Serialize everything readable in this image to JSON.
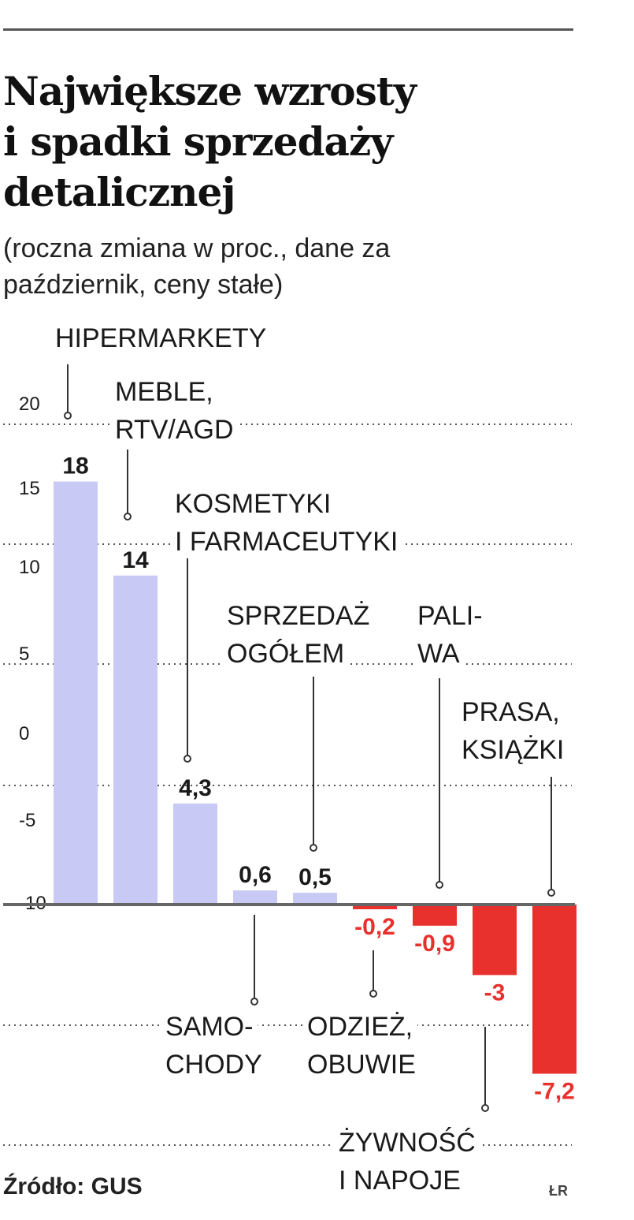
{
  "title_lines": [
    "Największe wzrosty",
    "i spadki sprzedaży",
    "detalicznej"
  ],
  "subtitle_lines": [
    "(roczna zmiana w proc., dane za",
    "październik, ceny stałe)"
  ],
  "source": "Źródło: GUS",
  "credit": "ŁR",
  "colors": {
    "positive": "#c9c9f5",
    "negative": "#e8302c",
    "negative_label": "#e8302c",
    "text": "#1a1a1a",
    "grid": "#555555"
  },
  "chart_data": {
    "type": "bar",
    "grid": "dotted",
    "yticks": [
      "20",
      "15",
      "10",
      "5",
      "0",
      "-5",
      "-10"
    ],
    "categories": [
      [
        "HIPERMARKETY"
      ],
      [
        "MEBLE,",
        "RTV/AGD"
      ],
      [
        "KOSMETYKI",
        "I FARMACEUTYKI"
      ],
      [
        "SAMO-",
        "CHODY"
      ],
      [
        "SPRZEDAŻ",
        "OGÓŁEM"
      ],
      [
        "ODZIEŻ,",
        "OBUWIE"
      ],
      [
        "PALI-",
        "WA"
      ],
      [
        "ŻYWNOŚĆ",
        "I NAPOJE"
      ],
      [
        "PRASA,",
        "KSIĄŻKI"
      ]
    ],
    "values": [
      18,
      14,
      4.3,
      0.6,
      0.5,
      -0.2,
      -0.9,
      -3,
      -7.2
    ],
    "value_labels": [
      "18",
      "14",
      "4,3",
      "0,6",
      "0,5",
      "-0,2",
      "-0,9",
      "-3",
      "-7,2"
    ]
  }
}
